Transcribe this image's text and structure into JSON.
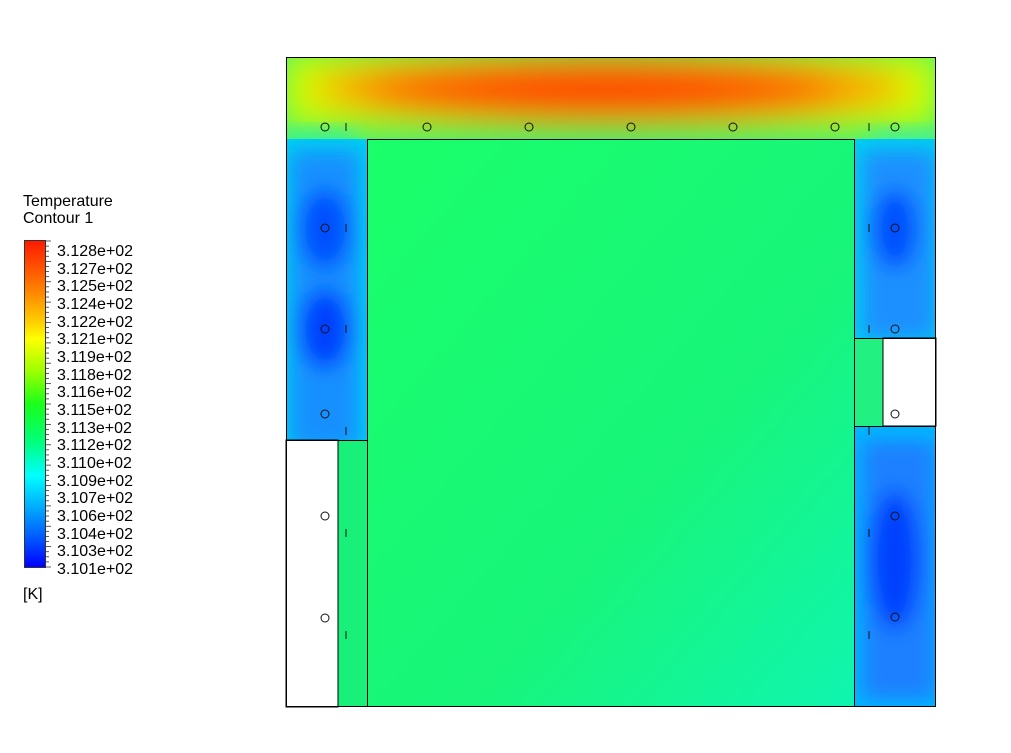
{
  "chart_data": {
    "type": "heatmap",
    "title": "Temperature",
    "subtitle": "Contour 1",
    "unit": "[K]",
    "colormap": "rainbow (blue to red)",
    "range": [
      310.1,
      312.8
    ],
    "colorbar_ticks": [
      "3.128e+02",
      "3.127e+02",
      "3.125e+02",
      "3.124e+02",
      "3.122e+02",
      "3.121e+02",
      "3.119e+02",
      "3.118e+02",
      "3.116e+02",
      "3.115e+02",
      "3.113e+02",
      "3.112e+02",
      "3.110e+02",
      "3.109e+02",
      "3.107e+02",
      "3.106e+02",
      "3.104e+02",
      "3.103e+02",
      "3.101e+02"
    ],
    "legend_placement": "left",
    "field_summary": {
      "top_band": "hot (red, ~312.8 K)",
      "central_region": "green (~311.5 K)",
      "side_zones": "cool (blue, ~310.1-310.6 K)"
    },
    "colors": {
      "hot": "#ff1a00",
      "mid": "#1aff80",
      "cold": "#0000ff"
    }
  }
}
